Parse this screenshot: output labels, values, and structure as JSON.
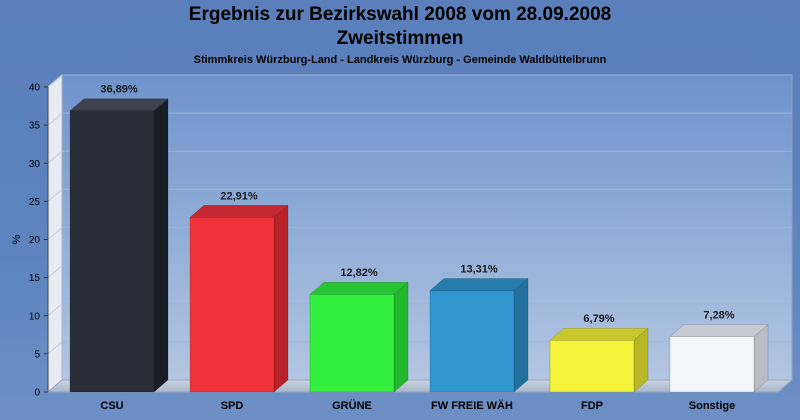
{
  "header": {
    "title_line1": "Ergebnis zur Bezirkswahl 2008 vom 28.09.2008",
    "title_line2": "Zweitstimmen",
    "subtitle": "Stimmkreis Würzburg-Land - Landkreis Würzburg - Gemeinde Waldbüttelbrunn"
  },
  "chart_data": {
    "type": "bar",
    "title": "Ergebnis zur Bezirkswahl 2008 vom 28.09.2008 Zweitstimmen",
    "subtitle": "Stimmkreis Würzburg-Land - Landkreis Würzburg - Gemeinde Waldbüttelbrunn",
    "xlabel": "",
    "ylabel": "%",
    "ylim": [
      0,
      40
    ],
    "yticks": [
      0,
      5,
      10,
      15,
      20,
      25,
      30,
      35,
      40
    ],
    "grid": true,
    "three_d": true,
    "categories": [
      "CSU",
      "SPD",
      "GRÜNE",
      "FW FREIE WÄH",
      "FDP",
      "Sonstige"
    ],
    "values": [
      36.89,
      22.91,
      12.82,
      13.31,
      6.79,
      7.28
    ],
    "value_labels": [
      "36,89%",
      "22,91%",
      "12,82%",
      "13,31%",
      "6,79%",
      "7,28%"
    ],
    "colors": [
      "#2a2e38",
      "#f0323a",
      "#33f03f",
      "#2f96d0",
      "#f3f339",
      "#f4f6fb"
    ],
    "side_colors": [
      "#1a1d24",
      "#b82128",
      "#22b82c",
      "#22709e",
      "#b8b826",
      "#b9bcc4"
    ],
    "top_colors": [
      "#3d424e",
      "#c32830",
      "#28c434",
      "#267cad",
      "#c8c82c",
      "#c8cbd3"
    ]
  }
}
